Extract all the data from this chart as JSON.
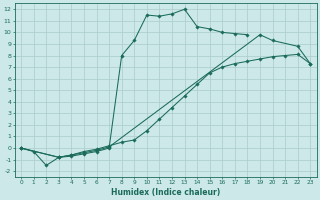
{
  "xlabel": "Humidex (Indice chaleur)",
  "bg_color": "#cce8e8",
  "grid_color": "#aacccc",
  "line_color": "#1a6b5a",
  "xlim": [
    -0.5,
    23.5
  ],
  "ylim": [
    -2.5,
    12.5
  ],
  "xticks": [
    0,
    1,
    2,
    3,
    4,
    5,
    6,
    7,
    8,
    9,
    10,
    11,
    12,
    13,
    14,
    15,
    16,
    17,
    18,
    19,
    20,
    21,
    22,
    23
  ],
  "yticks": [
    -2,
    -1,
    0,
    1,
    2,
    3,
    4,
    5,
    6,
    7,
    8,
    9,
    10,
    11,
    12
  ],
  "line1_x": [
    0,
    1,
    2,
    3,
    4,
    5,
    6,
    7,
    8,
    9,
    10,
    11,
    12,
    13,
    14,
    15,
    16,
    17,
    18
  ],
  "line1_y": [
    0,
    -0.3,
    -1.5,
    -0.8,
    -0.7,
    -0.5,
    -0.3,
    0.0,
    8.0,
    9.3,
    11.5,
    11.4,
    11.6,
    12.0,
    10.5,
    10.3,
    10.0,
    9.9,
    9.8
  ],
  "line2_x": [
    0,
    3,
    4,
    5,
    6,
    7,
    19,
    20,
    22,
    23
  ],
  "line2_y": [
    0,
    -0.8,
    -0.6,
    -0.4,
    -0.2,
    0.1,
    9.8,
    9.3,
    8.8,
    7.3
  ],
  "line3_x": [
    0,
    3,
    4,
    5,
    6,
    7,
    8,
    9,
    10,
    11,
    12,
    13,
    14,
    15,
    16,
    17,
    18,
    19,
    20,
    21,
    22,
    23
  ],
  "line3_y": [
    0,
    -0.8,
    -0.6,
    -0.3,
    -0.1,
    0.2,
    0.5,
    0.7,
    1.5,
    2.5,
    3.5,
    4.5,
    5.5,
    6.5,
    7.0,
    7.3,
    7.5,
    7.7,
    7.9,
    8.0,
    8.1,
    7.3
  ]
}
